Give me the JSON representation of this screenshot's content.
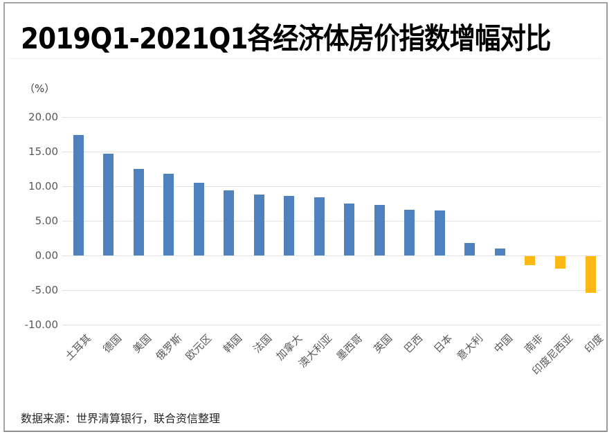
{
  "title": "2019Q1-2021Q1各经济体房价指数增幅对比",
  "unit_label": "（%）",
  "source_note": "数据来源：世界清算银行，联合资信整理",
  "chart_data": {
    "type": "bar",
    "title": "2019Q1-2021Q1各经济体房价指数增幅对比",
    "ylabel": "（%）",
    "ylim": [
      -10,
      20
    ],
    "yticks": [
      20,
      15,
      10,
      5,
      0,
      -5,
      -10
    ],
    "ytick_labels": [
      "20.00",
      "15.00",
      "10.00",
      "5.00",
      "0.00",
      "-5.00",
      "-10.00"
    ],
    "grid": true,
    "legend_position": "none",
    "categories": [
      "土耳其",
      "德国",
      "美国",
      "俄罗斯",
      "欧元区",
      "韩国",
      "法国",
      "加拿大",
      "澳大利亚",
      "墨西哥",
      "英国",
      "巴西",
      "日本",
      "意大利",
      "中国",
      "南非",
      "印度尼西亚",
      "印度"
    ],
    "values": [
      17.4,
      14.7,
      12.5,
      11.8,
      10.5,
      9.4,
      8.8,
      8.6,
      8.4,
      7.5,
      7.3,
      6.6,
      6.5,
      1.8,
      1.0,
      -1.3,
      -1.8,
      -5.3
    ],
    "positive_color": "#4e81bd",
    "negative_color": "#fcb813",
    "source": "数据来源：世界清算银行，联合资信整理"
  }
}
